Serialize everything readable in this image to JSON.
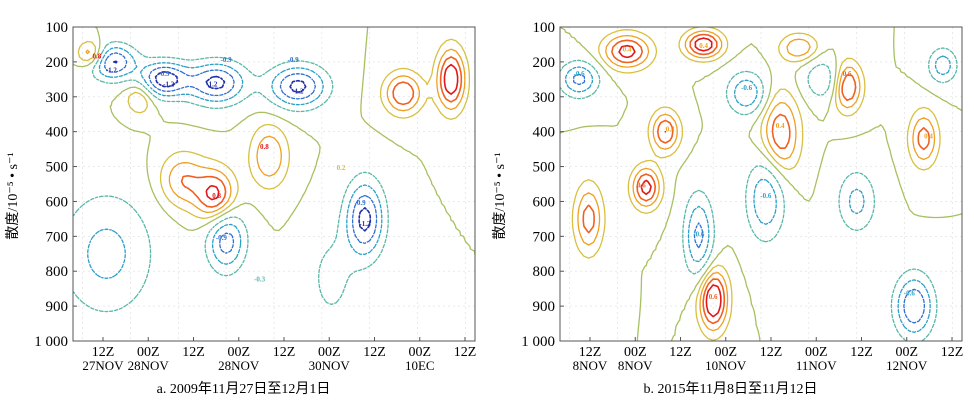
{
  "chart_data": [
    {
      "type": "contour",
      "panel": "a",
      "caption": "a. 2009年11月27日至12月1日",
      "ylabel": "散度/10⁻⁵ • s⁻¹",
      "y_ticks": [
        "100",
        "200",
        "300",
        "400",
        "500",
        "600",
        "700",
        "800",
        "900",
        "1 000"
      ],
      "ylim": [
        1000,
        100
      ],
      "x_ticks": [
        {
          "top": "12Z",
          "bottom": "27NOV"
        },
        {
          "top": "00Z",
          "bottom": "28NOV"
        },
        {
          "top": "12Z",
          "bottom": ""
        },
        {
          "top": "00Z",
          "bottom": "28NOV"
        },
        {
          "top": "12Z",
          "bottom": ""
        },
        {
          "top": "00Z",
          "bottom": "30NOV"
        },
        {
          "top": "12Z",
          "bottom": ""
        },
        {
          "top": "00Z",
          "bottom": "10EC"
        },
        {
          "top": "12Z",
          "bottom": ""
        }
      ],
      "contour_labels": [
        {
          "text": "-1.2",
          "x": 0.8,
          "y": 230
        },
        {
          "text": "0.8",
          "x": 0.5,
          "y": 190
        },
        {
          "text": "-0.9",
          "x": 1.9,
          "y": 240
        },
        {
          "text": "-1.2",
          "x": 2.0,
          "y": 270
        },
        {
          "text": "0.8",
          "x": 3.0,
          "y": 590
        },
        {
          "text": "-0.9",
          "x": 3.1,
          "y": 710
        },
        {
          "text": "-1.2",
          "x": 2.9,
          "y": 270
        },
        {
          "text": "-0.9",
          "x": 3.2,
          "y": 200
        },
        {
          "text": "-0.9",
          "x": 4.6,
          "y": 200
        },
        {
          "text": "-1.2",
          "x": 4.7,
          "y": 290
        },
        {
          "text": "0.8",
          "x": 4.0,
          "y": 450
        },
        {
          "text": "-1.2",
          "x": 6.1,
          "y": 670
        },
        {
          "text": "-0.9",
          "x": 6.0,
          "y": 610
        },
        {
          "text": "0.2",
          "x": 5.6,
          "y": 510
        },
        {
          "text": "-0.3",
          "x": 3.9,
          "y": 830
        }
      ]
    },
    {
      "type": "contour",
      "panel": "b",
      "caption": "b. 2015年11月8日至11月12日",
      "ylabel": "散度/10⁻⁵ • s⁻¹",
      "y_ticks": [
        "100",
        "200",
        "300",
        "400",
        "500",
        "600",
        "700",
        "800",
        "900",
        "1 000"
      ],
      "ylim": [
        1000,
        100
      ],
      "x_ticks": [
        {
          "top": "12Z",
          "bottom": "8NOV"
        },
        {
          "top": "00Z",
          "bottom": "8NOV"
        },
        {
          "top": "12Z",
          "bottom": ""
        },
        {
          "top": "00Z",
          "bottom": "10NOV"
        },
        {
          "top": "12Z",
          "bottom": ""
        },
        {
          "top": "00Z",
          "bottom": "11NOV"
        },
        {
          "top": "12Z",
          "bottom": ""
        },
        {
          "top": "00Z",
          "bottom": "12NOV"
        },
        {
          "top": "12Z",
          "bottom": ""
        }
      ],
      "contour_labels": [
        {
          "text": "0.4",
          "x": 1.4,
          "y": 170
        },
        {
          "text": "0.4",
          "x": 3.0,
          "y": 160
        },
        {
          "text": "-0.6",
          "x": 0.4,
          "y": 240
        },
        {
          "text": "-0.6",
          "x": 3.9,
          "y": 280
        },
        {
          "text": "0.4",
          "x": 2.3,
          "y": 400
        },
        {
          "text": "0.4",
          "x": 4.6,
          "y": 390
        },
        {
          "text": "0.6",
          "x": 1.7,
          "y": 560
        },
        {
          "text": "-0.6",
          "x": 4.3,
          "y": 590
        },
        {
          "text": "-0.6",
          "x": 2.9,
          "y": 700
        },
        {
          "text": "0.6",
          "x": 6.0,
          "y": 240
        },
        {
          "text": "0.6",
          "x": 3.2,
          "y": 880
        },
        {
          "text": "-0.6",
          "x": 7.3,
          "y": 870
        },
        {
          "text": "0.4",
          "x": 7.7,
          "y": 420
        }
      ]
    }
  ]
}
